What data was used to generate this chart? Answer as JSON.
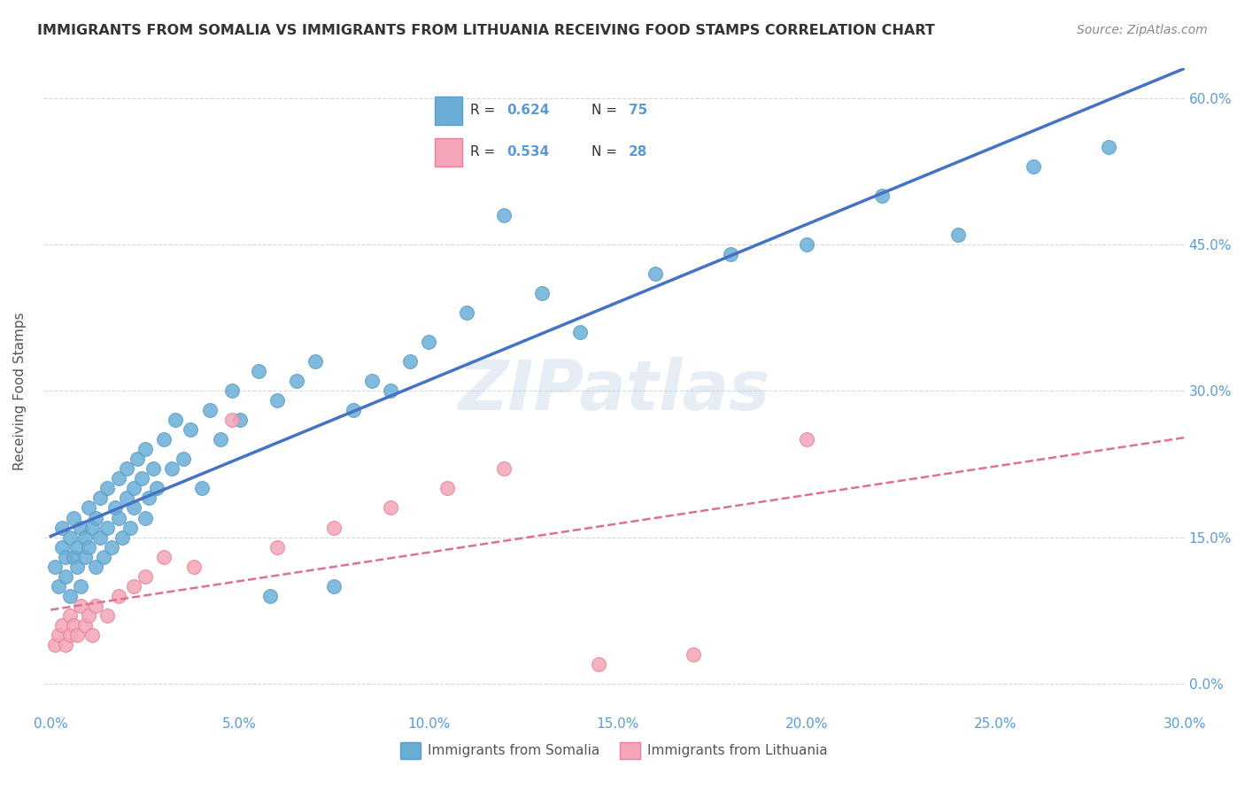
{
  "title": "IMMIGRANTS FROM SOMALIA VS IMMIGRANTS FROM LITHUANIA RECEIVING FOOD STAMPS CORRELATION CHART",
  "source": "Source: ZipAtlas.com",
  "ylabel": "Receiving Food Stamps",
  "yticks": [
    "0.0%",
    "15.0%",
    "30.0%",
    "45.0%",
    "60.0%"
  ],
  "ytick_values": [
    0.0,
    0.15,
    0.3,
    0.45,
    0.6
  ],
  "xlim": [
    0.0,
    0.3
  ],
  "ylim": [
    -0.03,
    0.63
  ],
  "somalia_color": "#6aaed6",
  "somalia_color_edge": "#5b9ec9",
  "lithuania_color": "#f4a6b8",
  "lithuania_color_edge": "#e8829a",
  "somalia_R": 0.624,
  "somalia_N": 75,
  "lithuania_R": 0.534,
  "lithuania_N": 28,
  "trendline_somalia_color": "#4472c4",
  "trendline_lithuania_color": "#e07090",
  "watermark": "ZIPatlas",
  "legend_somalia_label": "Immigrants from Somalia",
  "legend_lithuania_label": "Immigrants from Lithuania",
  "somalia_x": [
    0.001,
    0.002,
    0.003,
    0.003,
    0.004,
    0.004,
    0.005,
    0.005,
    0.006,
    0.006,
    0.007,
    0.007,
    0.008,
    0.008,
    0.009,
    0.009,
    0.01,
    0.01,
    0.011,
    0.012,
    0.012,
    0.013,
    0.013,
    0.014,
    0.015,
    0.015,
    0.016,
    0.017,
    0.018,
    0.018,
    0.019,
    0.02,
    0.02,
    0.021,
    0.022,
    0.022,
    0.023,
    0.024,
    0.025,
    0.025,
    0.026,
    0.027,
    0.028,
    0.03,
    0.032,
    0.033,
    0.035,
    0.037,
    0.04,
    0.042,
    0.045,
    0.048,
    0.05,
    0.055,
    0.058,
    0.06,
    0.065,
    0.07,
    0.075,
    0.08,
    0.085,
    0.09,
    0.095,
    0.1,
    0.11,
    0.12,
    0.13,
    0.14,
    0.16,
    0.18,
    0.2,
    0.22,
    0.24,
    0.26,
    0.28
  ],
  "somalia_y": [
    0.12,
    0.1,
    0.14,
    0.16,
    0.11,
    0.13,
    0.15,
    0.09,
    0.13,
    0.17,
    0.14,
    0.12,
    0.16,
    0.1,
    0.15,
    0.13,
    0.18,
    0.14,
    0.16,
    0.12,
    0.17,
    0.15,
    0.19,
    0.13,
    0.16,
    0.2,
    0.14,
    0.18,
    0.17,
    0.21,
    0.15,
    0.19,
    0.22,
    0.16,
    0.2,
    0.18,
    0.23,
    0.21,
    0.17,
    0.24,
    0.19,
    0.22,
    0.2,
    0.25,
    0.22,
    0.27,
    0.23,
    0.26,
    0.2,
    0.28,
    0.25,
    0.3,
    0.27,
    0.32,
    0.09,
    0.29,
    0.31,
    0.33,
    0.1,
    0.28,
    0.31,
    0.3,
    0.33,
    0.35,
    0.38,
    0.48,
    0.4,
    0.36,
    0.42,
    0.44,
    0.45,
    0.5,
    0.46,
    0.53,
    0.55
  ],
  "lithuania_x": [
    0.001,
    0.002,
    0.003,
    0.004,
    0.005,
    0.005,
    0.006,
    0.007,
    0.008,
    0.009,
    0.01,
    0.011,
    0.012,
    0.015,
    0.018,
    0.022,
    0.025,
    0.03,
    0.038,
    0.048,
    0.06,
    0.075,
    0.09,
    0.105,
    0.12,
    0.145,
    0.17,
    0.2
  ],
  "lithuania_y": [
    0.04,
    0.05,
    0.06,
    0.04,
    0.05,
    0.07,
    0.06,
    0.05,
    0.08,
    0.06,
    0.07,
    0.05,
    0.08,
    0.07,
    0.09,
    0.1,
    0.11,
    0.13,
    0.12,
    0.27,
    0.14,
    0.16,
    0.18,
    0.2,
    0.22,
    0.02,
    0.03,
    0.25
  ]
}
